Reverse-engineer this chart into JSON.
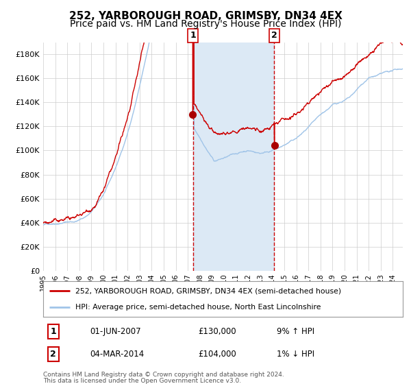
{
  "title": "252, YARBOROUGH ROAD, GRIMSBY, DN34 4EX",
  "subtitle": "Price paid vs. HM Land Registry's House Price Index (HPI)",
  "ylim": [
    0,
    190000
  ],
  "yticks": [
    0,
    20000,
    40000,
    60000,
    80000,
    100000,
    120000,
    140000,
    160000,
    180000
  ],
  "xlim_start": 1995.0,
  "xlim_end": 2024.83,
  "sale1_date": 2007.416,
  "sale1_price": 130000,
  "sale2_date": 2014.17,
  "sale2_price": 104000,
  "shade_color": "#dce9f5",
  "line1_color": "#cc0000",
  "line2_color": "#a0c4e8",
  "dot_color": "#aa0000",
  "vline_color": "#cc0000",
  "legend_label1": "252, YARBOROUGH ROAD, GRIMSBY, DN34 4EX (semi-detached house)",
  "legend_label2": "HPI: Average price, semi-detached house, North East Lincolnshire",
  "footer1": "Contains HM Land Registry data © Crown copyright and database right 2024.",
  "footer2": "This data is licensed under the Open Government Licence v3.0.",
  "title_fontsize": 11,
  "subtitle_fontsize": 10,
  "background_color": "#ffffff",
  "grid_color": "#cccccc"
}
